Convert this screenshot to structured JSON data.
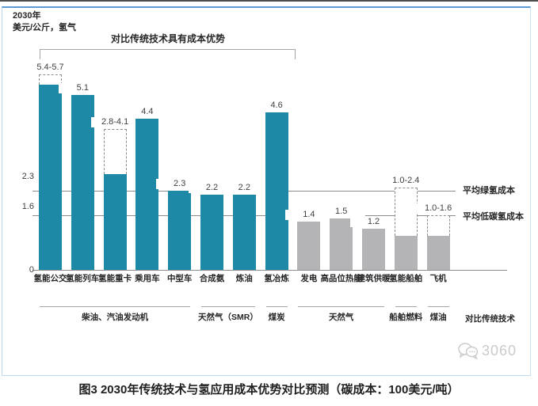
{
  "header": {
    "year_label": "2030年",
    "unit_label": "美元/公斤，氢气"
  },
  "bracket": {
    "label": "对比传统技术具有成本优势"
  },
  "chart_data": {
    "type": "bar",
    "title": "2030年传统技术与氢应用成本优势对比预测",
    "ylabel": "美元/公斤，氢气",
    "ylim": [
      0,
      6
    ],
    "y_ticks": [
      "0",
      "1.6",
      "2.3"
    ],
    "colors": {
      "hydrogen": "#1d89a6",
      "traditional": "#b4b4b6"
    },
    "bars": [
      {
        "name": "氢能公交",
        "value_label": "5.4-5.7",
        "solid": 5.4,
        "range_top": 5.7,
        "type": "hydrogen"
      },
      {
        "name": "氢能列车",
        "value_label": "5.1",
        "solid": 5.1,
        "range_top": null,
        "type": "hydrogen"
      },
      {
        "name": "氢能重卡",
        "value_label": "2.8-4.1",
        "solid": 2.8,
        "range_top": 4.1,
        "type": "hydrogen"
      },
      {
        "name": "乘用车",
        "value_label": "4.4",
        "solid": 4.4,
        "range_top": null,
        "type": "hydrogen"
      },
      {
        "name": "中型车",
        "value_label": "2.3",
        "solid": 2.3,
        "range_top": null,
        "type": "hydrogen"
      },
      {
        "name": "合成氨",
        "value_label": "2.2",
        "solid": 2.2,
        "range_top": null,
        "type": "hydrogen"
      },
      {
        "name": "炼油",
        "value_label": "2.2",
        "solid": 2.2,
        "range_top": null,
        "type": "hydrogen"
      },
      {
        "name": "氢冶炼",
        "value_label": "4.6",
        "solid": 4.6,
        "range_top": null,
        "type": "hydrogen"
      },
      {
        "name": "发电",
        "value_label": "1.4",
        "solid": 1.4,
        "range_top": null,
        "type": "traditional"
      },
      {
        "name": "高品位热能",
        "value_label": "1.5",
        "solid": 1.5,
        "range_top": null,
        "type": "traditional"
      },
      {
        "name": "建筑供暖",
        "value_label": "1.2",
        "solid": 1.2,
        "range_top": null,
        "type": "traditional"
      },
      {
        "name": "氢能船舶",
        "value_label": "1.0-2.4",
        "solid": 1.0,
        "range_top": 2.4,
        "type": "traditional"
      },
      {
        "name": "飞机",
        "value_label": "1.0-1.6",
        "solid": 1.0,
        "range_top": 1.6,
        "type": "traditional"
      }
    ],
    "ref_lines": [
      {
        "value": 2.3,
        "label": "平均绿氢成本"
      },
      {
        "value": 1.6,
        "label": "平均低碳氢成本"
      }
    ],
    "groups": [
      {
        "label": "柴油、汽油发动机",
        "start": 0,
        "end": 4
      },
      {
        "label": "天然气（SMR）",
        "start": 5,
        "end": 6
      },
      {
        "label": "煤炭",
        "start": 7,
        "end": 7
      },
      {
        "label": "天然气",
        "start": 8,
        "end": 10
      },
      {
        "label": "船舶燃料",
        "start": 11,
        "end": 11
      },
      {
        "label": "煤油",
        "start": 12,
        "end": 12
      }
    ],
    "comparison_row_label": "对比传统技术"
  },
  "watermark": {
    "text": "3060"
  },
  "caption": "图3 2030年传统技术与氢应用成本优势对比预测（碳成本：100美元/吨）"
}
